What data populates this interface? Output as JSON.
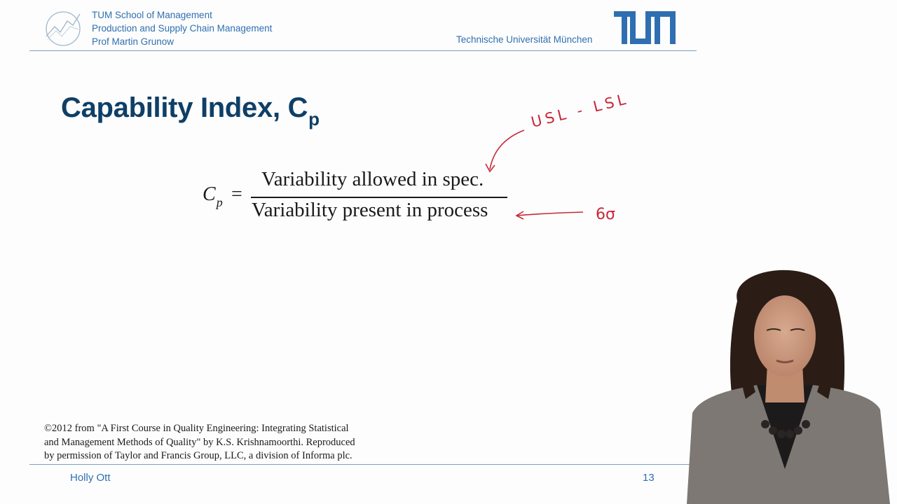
{
  "header": {
    "org_lines": [
      "TUM School of Management",
      "Production and Supply Chain Management",
      "Prof Martin Grunow"
    ],
    "university": "Technische Universität München",
    "logo_icon": "chart-circle-logo-icon",
    "tum_logo_icon": "tum-wordmark-logo"
  },
  "slide": {
    "title_main": "Capability Index, C",
    "title_subscript": "p",
    "formula": {
      "lhs_symbol": "C",
      "lhs_subscript": "p",
      "equals": "=",
      "numerator": "Variability allowed in spec.",
      "denominator": "Variability present in process"
    },
    "annotations": {
      "numerator_note": "USL - LSL",
      "denominator_note": "6σ"
    },
    "copyright_lines": [
      "©2012 from \"A First Course in Quality Engineering: Integrating Statistical",
      "and Management Methods of Quality\" by K.S. Krishnamoorthi. Reproduced",
      "by permission of Taylor and Francis Group, LLC, a division of Informa plc."
    ]
  },
  "footer": {
    "author": "Holly Ott",
    "page_number": "13"
  },
  "colors": {
    "brand_blue": "#2f6fb1",
    "title_navy": "#0e3f67",
    "annotation_red": "#c8283a"
  }
}
